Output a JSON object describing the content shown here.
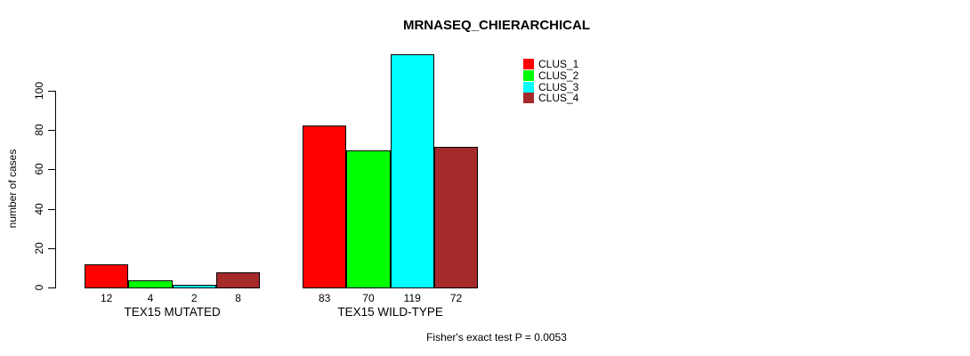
{
  "chart_data": {
    "type": "bar",
    "title": "MRNASEQ_CHIERARCHICAL",
    "ylabel": "number of cases",
    "xlabel": "",
    "categories": [
      "TEX15 MUTATED",
      "TEX15 WILD-TYPE"
    ],
    "series": [
      {
        "name": "CLUS_1",
        "color": "#ff0000",
        "values": [
          12,
          83
        ]
      },
      {
        "name": "CLUS_2",
        "color": "#00ff00",
        "values": [
          4,
          70
        ]
      },
      {
        "name": "CLUS_3",
        "color": "#00ffff",
        "values": [
          2,
          119
        ]
      },
      {
        "name": "CLUS_4",
        "color": "#a52a2a",
        "values": [
          8,
          72
        ]
      }
    ],
    "bar_value_labels": [
      [
        "12",
        "4",
        "2",
        "8"
      ],
      [
        "83",
        "70",
        "119",
        "72"
      ]
    ],
    "yticks": [
      "0",
      "20",
      "40",
      "60",
      "80",
      "100"
    ],
    "ylim": [
      0,
      100
    ],
    "grid": false,
    "legend_position": "top-right",
    "annotation": "Fisher's exact test P = 0.0053",
    "axis_color": "#000000",
    "background_color": "#ffffff"
  }
}
